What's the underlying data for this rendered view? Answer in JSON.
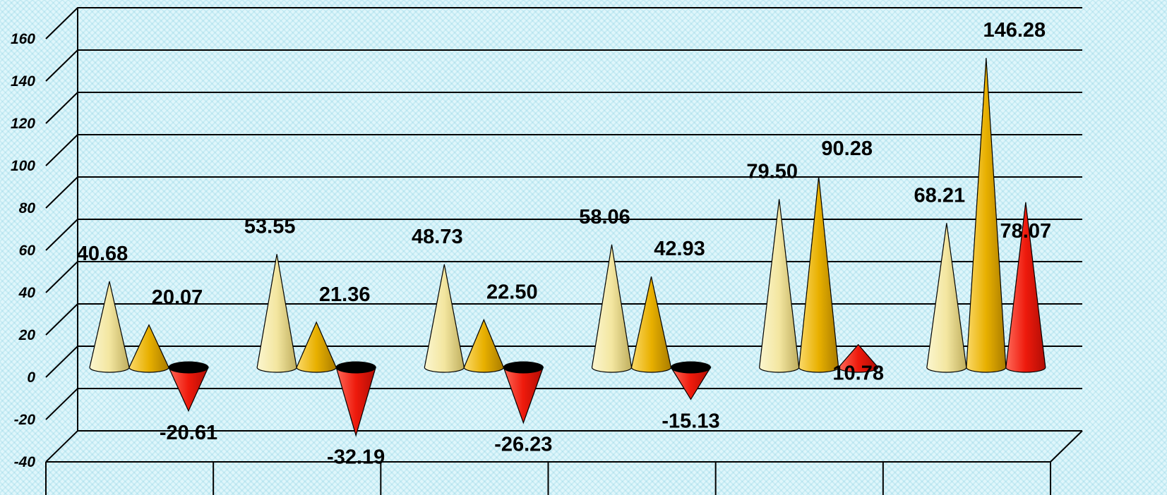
{
  "chart_data": {
    "type": "bar",
    "style": "3d-cone",
    "grid": true,
    "legend": "none",
    "title": "",
    "xlabel": "",
    "ylabel": "",
    "ylim": [
      -40,
      160
    ],
    "yticks": [
      "160",
      "140",
      "120",
      "100",
      "80",
      "60",
      "40",
      "20",
      "0",
      "-20",
      "-40"
    ],
    "categories": [
      "",
      "",
      "",
      "",
      "",
      ""
    ],
    "series": [
      {
        "color": "#f2e49a",
        "values": [
          40.68,
          53.55,
          48.73,
          58.06,
          79.5,
          68.21
        ],
        "labels": [
          "40.68",
          "53.55",
          "48.73",
          "58.06",
          "79.50",
          "68.21"
        ]
      },
      {
        "color": "#e8b200",
        "values": [
          20.07,
          21.36,
          22.5,
          42.93,
          90.28,
          146.28
        ],
        "labels": [
          "20.07",
          "21.36",
          "22.50",
          "42.93",
          "90.28",
          "146.28"
        ]
      },
      {
        "color": "#e8140a",
        "values": [
          -20.61,
          -32.19,
          -26.23,
          -15.13,
          10.78,
          78.07
        ],
        "labels": [
          "-20.61",
          "-32.19",
          "-26.23",
          "-15.13",
          "10.78",
          "78.07"
        ]
      }
    ]
  }
}
